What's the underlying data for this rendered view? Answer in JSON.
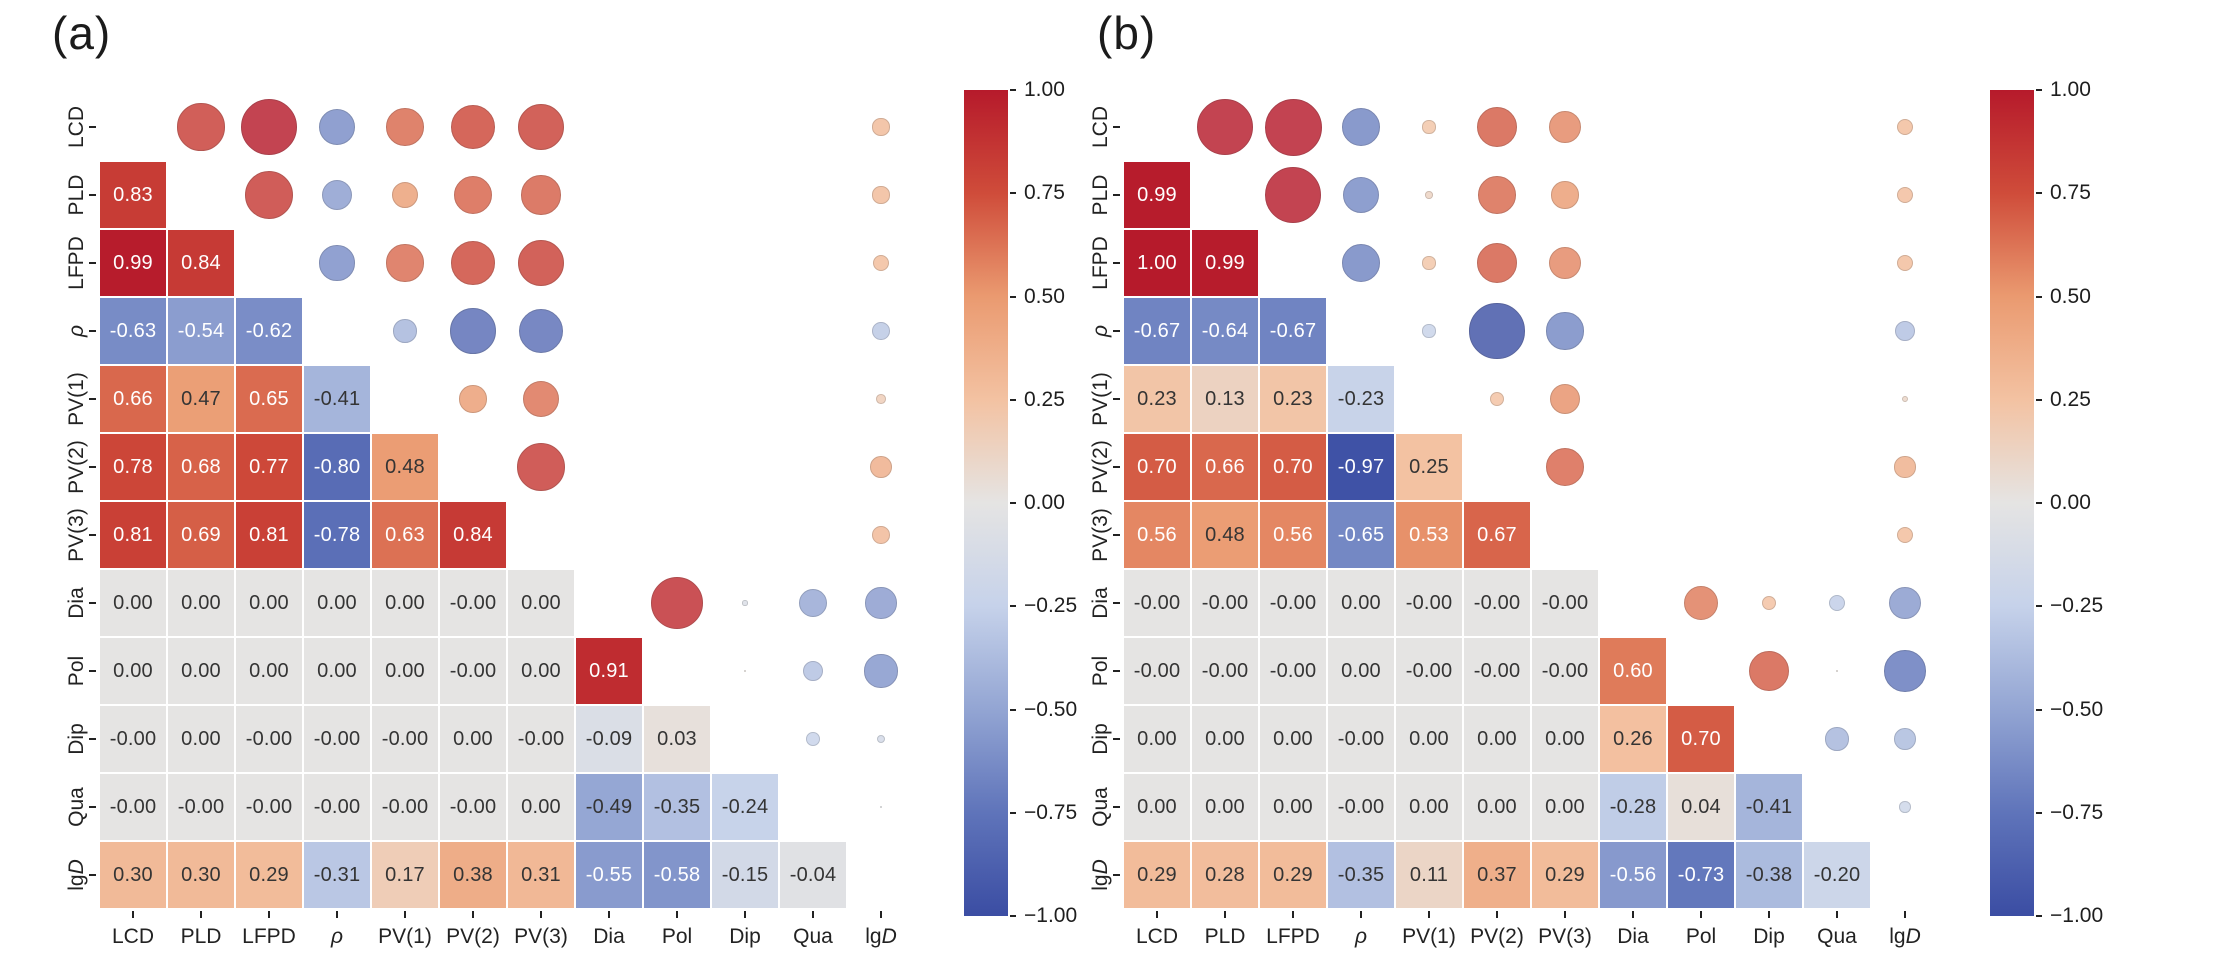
{
  "figure": {
    "background": "#ffffff",
    "panel_titles": [
      "(a)",
      "(b)"
    ]
  },
  "chart_data": [
    {
      "type": "heatmap",
      "title": "(a)",
      "subtype": "correlation-matrix",
      "variables": [
        "LCD",
        "PLD",
        "LFPD",
        "ρ",
        "PV(1)",
        "PV(2)",
        "PV(3)",
        "Dia",
        "Pol",
        "Dip",
        "Qua",
        "lgD"
      ],
      "lower_triangle_values": [
        [
          "0.83"
        ],
        [
          "0.99",
          "0.84"
        ],
        [
          "-0.63",
          "-0.54",
          "-0.62"
        ],
        [
          "0.66",
          "0.47",
          "0.65",
          "-0.41"
        ],
        [
          "0.78",
          "0.68",
          "0.77",
          "-0.80",
          "0.48"
        ],
        [
          "0.81",
          "0.69",
          "0.81",
          "-0.78",
          "0.63",
          "0.84"
        ],
        [
          "0.00",
          "0.00",
          "0.00",
          "0.00",
          "0.00",
          "-0.00",
          "0.00"
        ],
        [
          "0.00",
          "0.00",
          "0.00",
          "0.00",
          "0.00",
          "-0.00",
          "0.00",
          "0.91"
        ],
        [
          "-0.00",
          "0.00",
          "-0.00",
          "-0.00",
          "-0.00",
          "0.00",
          "-0.00",
          "-0.09",
          "0.03"
        ],
        [
          "-0.00",
          "-0.00",
          "-0.00",
          "-0.00",
          "-0.00",
          "-0.00",
          "0.00",
          "-0.49",
          "-0.35",
          "-0.24"
        ],
        [
          "0.30",
          "0.30",
          "0.29",
          "-0.31",
          "0.17",
          "0.38",
          "0.31",
          "-0.55",
          "-0.58",
          "-0.15",
          "-0.04"
        ]
      ],
      "upper_triangle_style": "circles, diameter proportional to |r|, colored by r, mirror of lower triangle",
      "colorbar_ticks": [
        "1.00",
        "0.75",
        "0.50",
        "0.25",
        "0.00",
        "−0.25",
        "−0.50",
        "−0.75",
        "−1.00"
      ],
      "value_range": [
        -1,
        1
      ]
    },
    {
      "type": "heatmap",
      "title": "(b)",
      "subtype": "correlation-matrix",
      "variables": [
        "LCD",
        "PLD",
        "LFPD",
        "ρ",
        "PV(1)",
        "PV(2)",
        "PV(3)",
        "Dia",
        "Pol",
        "Dip",
        "Qua",
        "lgD"
      ],
      "lower_triangle_values": [
        [
          "0.99"
        ],
        [
          "1.00",
          "0.99"
        ],
        [
          "-0.67",
          "-0.64",
          "-0.67"
        ],
        [
          "0.23",
          "0.13",
          "0.23",
          "-0.23"
        ],
        [
          "0.70",
          "0.66",
          "0.70",
          "-0.97",
          "0.25"
        ],
        [
          "0.56",
          "0.48",
          "0.56",
          "-0.65",
          "0.53",
          "0.67"
        ],
        [
          "-0.00",
          "-0.00",
          "-0.00",
          "0.00",
          "-0.00",
          "-0.00",
          "-0.00"
        ],
        [
          "-0.00",
          "-0.00",
          "-0.00",
          "0.00",
          "-0.00",
          "-0.00",
          "-0.00",
          "0.60"
        ],
        [
          "0.00",
          "0.00",
          "0.00",
          "-0.00",
          "0.00",
          "0.00",
          "0.00",
          "0.26",
          "0.70"
        ],
        [
          "0.00",
          "0.00",
          "0.00",
          "-0.00",
          "0.00",
          "0.00",
          "0.00",
          "-0.28",
          "0.04",
          "-0.41"
        ],
        [
          "0.29",
          "0.28",
          "0.29",
          "-0.35",
          "0.11",
          "0.37",
          "0.29",
          "-0.56",
          "-0.73",
          "-0.38",
          "-0.20"
        ]
      ],
      "upper_triangle_style": "circles, diameter proportional to |r|, colored by r, mirror of lower triangle",
      "colorbar_ticks": [
        "1.00",
        "0.75",
        "0.50",
        "0.25",
        "0.00",
        "−0.25",
        "−0.50",
        "−0.75",
        "−1.00"
      ],
      "value_range": [
        -1,
        1
      ]
    }
  ],
  "colors": {
    "colormap_anchors": [
      [
        -1.0,
        "#3b4da3"
      ],
      [
        -0.75,
        "#5f74ba"
      ],
      [
        -0.5,
        "#93a5d3"
      ],
      [
        -0.25,
        "#c6d2ea"
      ],
      [
        0.0,
        "#e5e4e3"
      ],
      [
        0.25,
        "#f3c2a2"
      ],
      [
        0.5,
        "#ea9a70"
      ],
      [
        0.75,
        "#cf4c3a"
      ],
      [
        1.0,
        "#b61a2b"
      ]
    ],
    "cell_text_dark": "#343434",
    "cell_text_light": "#ffffff",
    "tick_color": "#222222"
  }
}
